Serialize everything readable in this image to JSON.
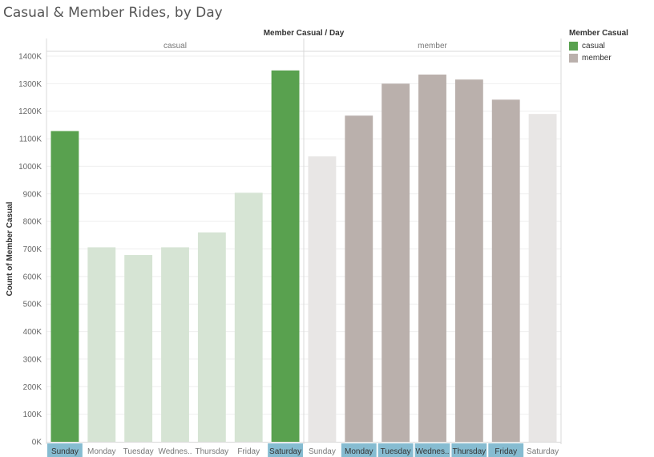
{
  "chart_data": {
    "type": "bar",
    "title": "Casual & Member Rides, by Day",
    "column_header": "Member Casual  /  Day",
    "ylabel": "Count of Member Casual",
    "ylim": [
      0,
      1400000
    ],
    "yticks": [
      {
        "value": 0,
        "label": "0K"
      },
      {
        "value": 100000,
        "label": "100K"
      },
      {
        "value": 200000,
        "label": "200K"
      },
      {
        "value": 300000,
        "label": "300K"
      },
      {
        "value": 400000,
        "label": "400K"
      },
      {
        "value": 500000,
        "label": "500K"
      },
      {
        "value": 600000,
        "label": "600K"
      },
      {
        "value": 700000,
        "label": "700K"
      },
      {
        "value": 800000,
        "label": "800K"
      },
      {
        "value": 900000,
        "label": "900K"
      },
      {
        "value": 1000000,
        "label": "1000K"
      },
      {
        "value": 1100000,
        "label": "1100K"
      },
      {
        "value": 1200000,
        "label": "1200K"
      },
      {
        "value": 1300000,
        "label": "1300K"
      },
      {
        "value": 1400000,
        "label": "1400K"
      }
    ],
    "panels": [
      {
        "name": "casual",
        "categories": [
          "Sunday",
          "Monday",
          "Tuesday",
          "Wednes..",
          "Thursday",
          "Friday",
          "Saturday"
        ],
        "values": [
          1128000,
          706000,
          678000,
          706000,
          760000,
          904000,
          1348000
        ],
        "highlighted": [
          true,
          false,
          false,
          false,
          false,
          false,
          true
        ]
      },
      {
        "name": "member",
        "categories": [
          "Sunday",
          "Monday",
          "Tuesday",
          "Wednes..",
          "Thursday",
          "Friday",
          "Saturday"
        ],
        "values": [
          1036000,
          1184000,
          1300000,
          1333000,
          1315000,
          1242000,
          1190000
        ],
        "highlighted": [
          false,
          true,
          true,
          true,
          true,
          true,
          false
        ]
      }
    ],
    "legend": {
      "title": "Member Casual",
      "placement": "top-right",
      "items": [
        {
          "label": "casual",
          "color": "#59a14f"
        },
        {
          "label": "member",
          "color": "#bab0ac"
        }
      ]
    },
    "colors": {
      "casual": "#59a14f",
      "casual_faded": "#d6e4d4",
      "member": "#bab0ac",
      "member_faded": "#e8e6e5",
      "highlight_label_bg": "#86bcd1"
    },
    "grid": true
  }
}
